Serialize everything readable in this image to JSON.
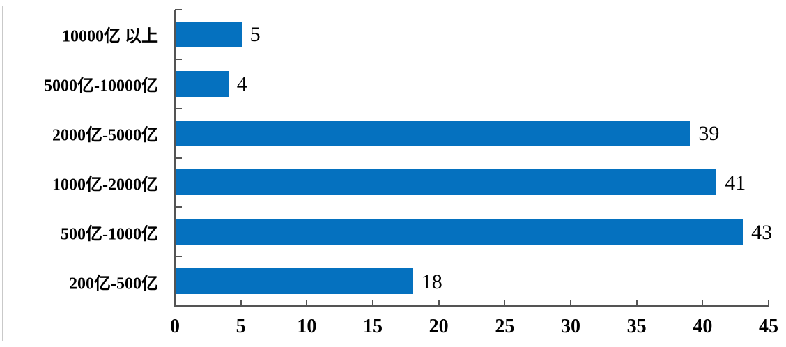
{
  "chart_data": {
    "type": "bar",
    "orientation": "horizontal",
    "title": "",
    "xlabel": "",
    "ylabel": "",
    "categories": [
      "10000亿 以上",
      "5000亿-10000亿",
      "2000亿-5000亿",
      "1000亿-2000亿",
      "500亿-1000亿",
      "200亿-500亿"
    ],
    "values": [
      5,
      4,
      39,
      41,
      43,
      18
    ],
    "value_labels": [
      "5",
      "4",
      "39",
      "41",
      "43",
      "18"
    ],
    "xlim": [
      0,
      45
    ],
    "xticks": [
      0,
      5,
      10,
      15,
      20,
      25,
      30,
      35,
      40,
      45
    ],
    "xtick_labels": [
      "0",
      "5",
      "10",
      "15",
      "20",
      "25",
      "30",
      "35",
      "40",
      "45"
    ],
    "grid": false,
    "legend": null,
    "bar_color": "#0571BF",
    "axis_color": "#545454",
    "text_color": "#000000"
  }
}
